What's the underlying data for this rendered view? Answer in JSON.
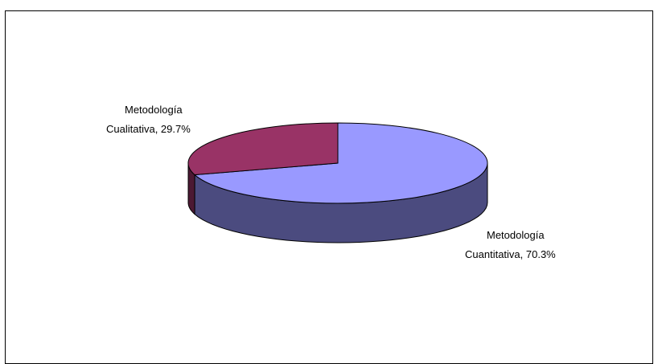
{
  "chart_data": {
    "type": "pie",
    "variant": "3d",
    "title": "",
    "legend": "none",
    "slices": [
      {
        "label_line1": "Metodología",
        "label_line2": "Cuantitativa, 70.3%",
        "value": 70.3,
        "color": "#9999ff",
        "side_color": "#4b4b7f"
      },
      {
        "label_line1": "Metodología",
        "label_line2": "Cualitativa, 29.7%",
        "value": 29.7,
        "color": "#993366",
        "side_color": "#4c1933"
      }
    ]
  }
}
